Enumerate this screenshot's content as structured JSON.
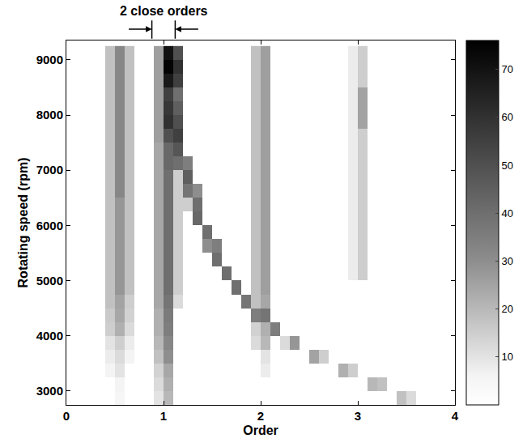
{
  "chart_data": {
    "type": "heatmap",
    "xlabel": "Order",
    "ylabel": "Rotating speed (rpm)",
    "xlim": [
      0,
      4
    ],
    "ylim": [
      2750,
      9350
    ],
    "xticks": [
      0,
      1,
      2,
      3,
      4
    ],
    "yticks": [
      3000,
      4000,
      5000,
      6000,
      7000,
      8000,
      9000
    ],
    "colorbar_range": [
      0,
      76
    ],
    "colorbar_ticks": [
      10,
      20,
      30,
      40,
      50,
      60,
      70
    ],
    "annotations": [
      {
        "text": "2 close orders",
        "x": 1,
        "markers": [
          0.88,
          1.12
        ]
      }
    ],
    "x": [
      0.05,
      0.15,
      0.25,
      0.35,
      0.45,
      0.55,
      0.65,
      0.75,
      0.85,
      0.95,
      1.05,
      1.15,
      1.25,
      1.35,
      1.45,
      1.55,
      1.65,
      1.75,
      1.85,
      1.95,
      2.05,
      2.15,
      2.25,
      2.35,
      2.45,
      2.55,
      2.65,
      2.75,
      2.85,
      2.95,
      3.05,
      3.15,
      3.25,
      3.35,
      3.45,
      3.55,
      3.65,
      3.75,
      3.85,
      3.95
    ],
    "y": [
      2875,
      3125,
      3375,
      3625,
      3875,
      4125,
      4375,
      4625,
      4875,
      5125,
      5375,
      5625,
      5875,
      6125,
      6375,
      6625,
      6875,
      7125,
      7375,
      7625,
      7875,
      8125,
      8375,
      8625,
      8875,
      9125
    ],
    "z": [
      [
        0,
        0,
        0,
        0,
        0,
        5,
        0,
        0,
        0,
        10,
        20,
        0,
        0,
        0,
        0,
        0,
        0,
        0,
        0,
        0,
        0,
        0,
        0,
        0,
        0,
        0,
        0,
        0,
        0,
        0,
        0,
        0,
        0,
        0,
        18,
        12,
        0,
        0,
        0,
        0
      ],
      [
        0,
        0,
        0,
        0,
        0,
        6,
        0,
        0,
        0,
        12,
        22,
        0,
        0,
        0,
        0,
        0,
        0,
        0,
        0,
        0,
        0,
        0,
        0,
        0,
        0,
        0,
        0,
        0,
        0,
        0,
        0,
        20,
        18,
        0,
        0,
        0,
        0,
        0,
        0,
        0
      ],
      [
        0,
        0,
        0,
        0,
        6,
        10,
        0,
        0,
        0,
        14,
        24,
        0,
        0,
        0,
        0,
        0,
        0,
        0,
        0,
        0,
        8,
        0,
        0,
        0,
        0,
        0,
        0,
        0,
        22,
        15,
        0,
        0,
        0,
        0,
        0,
        0,
        0,
        0,
        0,
        0
      ],
      [
        0,
        0,
        0,
        0,
        8,
        12,
        6,
        0,
        0,
        18,
        30,
        0,
        0,
        0,
        0,
        0,
        0,
        0,
        0,
        0,
        10,
        0,
        0,
        0,
        0,
        25,
        15,
        0,
        0,
        0,
        0,
        0,
        0,
        0,
        0,
        0,
        0,
        0,
        0,
        0
      ],
      [
        0,
        0,
        0,
        0,
        10,
        15,
        8,
        0,
        0,
        20,
        32,
        0,
        0,
        0,
        0,
        0,
        0,
        0,
        0,
        12,
        20,
        0,
        12,
        28,
        0,
        0,
        0,
        0,
        0,
        0,
        0,
        0,
        0,
        0,
        0,
        0,
        0,
        0,
        0,
        0
      ],
      [
        0,
        0,
        0,
        0,
        15,
        22,
        12,
        0,
        0,
        22,
        35,
        0,
        0,
        0,
        0,
        0,
        0,
        0,
        0,
        14,
        22,
        35,
        0,
        0,
        0,
        0,
        0,
        0,
        0,
        0,
        0,
        0,
        0,
        0,
        0,
        0,
        0,
        0,
        0,
        0
      ],
      [
        0,
        0,
        0,
        0,
        16,
        24,
        14,
        0,
        0,
        22,
        36,
        0,
        0,
        0,
        0,
        0,
        0,
        0,
        0,
        35,
        38,
        0,
        0,
        0,
        0,
        0,
        0,
        0,
        0,
        0,
        0,
        0,
        0,
        0,
        0,
        0,
        0,
        0,
        0,
        0
      ],
      [
        0,
        0,
        0,
        0,
        18,
        25,
        15,
        0,
        0,
        24,
        38,
        12,
        0,
        0,
        0,
        0,
        0,
        0,
        38,
        18,
        24,
        0,
        0,
        0,
        0,
        0,
        0,
        0,
        0,
        0,
        0,
        0,
        0,
        0,
        0,
        0,
        0,
        0,
        0,
        0
      ],
      [
        0,
        0,
        0,
        0,
        18,
        28,
        18,
        0,
        0,
        24,
        40,
        15,
        0,
        0,
        0,
        0,
        0,
        40,
        0,
        18,
        26,
        0,
        0,
        0,
        0,
        0,
        0,
        0,
        0,
        0,
        0,
        0,
        0,
        0,
        0,
        0,
        0,
        0,
        0,
        0
      ],
      [
        0,
        0,
        0,
        0,
        18,
        28,
        18,
        0,
        0,
        24,
        40,
        15,
        0,
        0,
        0,
        0,
        40,
        0,
        0,
        18,
        26,
        0,
        0,
        0,
        0,
        0,
        0,
        0,
        0,
        8,
        15,
        0,
        0,
        0,
        0,
        0,
        0,
        0,
        0,
        0
      ],
      [
        0,
        0,
        0,
        0,
        18,
        28,
        18,
        0,
        0,
        24,
        40,
        15,
        0,
        0,
        0,
        40,
        0,
        0,
        0,
        18,
        26,
        0,
        0,
        0,
        0,
        0,
        0,
        0,
        0,
        8,
        15,
        0,
        0,
        0,
        0,
        0,
        0,
        0,
        0,
        0
      ],
      [
        0,
        0,
        0,
        0,
        18,
        28,
        18,
        0,
        0,
        24,
        40,
        15,
        0,
        0,
        30,
        35,
        0,
        0,
        0,
        18,
        26,
        0,
        0,
        0,
        0,
        0,
        0,
        0,
        0,
        8,
        15,
        0,
        0,
        0,
        0,
        0,
        0,
        0,
        0,
        0
      ],
      [
        0,
        0,
        0,
        0,
        18,
        28,
        18,
        0,
        0,
        24,
        40,
        15,
        0,
        0,
        40,
        0,
        0,
        0,
        0,
        18,
        26,
        0,
        0,
        0,
        0,
        0,
        0,
        0,
        0,
        8,
        15,
        0,
        0,
        0,
        0,
        0,
        0,
        0,
        0,
        0
      ],
      [
        0,
        0,
        0,
        0,
        18,
        28,
        18,
        0,
        0,
        24,
        40,
        15,
        0,
        42,
        0,
        0,
        0,
        0,
        0,
        18,
        26,
        0,
        0,
        0,
        0,
        0,
        0,
        0,
        0,
        8,
        15,
        0,
        0,
        0,
        0,
        0,
        0,
        0,
        0,
        0
      ],
      [
        0,
        0,
        0,
        0,
        18,
        28,
        18,
        0,
        0,
        24,
        40,
        15,
        15,
        40,
        0,
        0,
        0,
        0,
        0,
        18,
        26,
        0,
        0,
        0,
        0,
        0,
        0,
        0,
        0,
        8,
        15,
        0,
        0,
        0,
        0,
        0,
        0,
        0,
        0,
        0
      ],
      [
        0,
        0,
        0,
        0,
        18,
        32,
        18,
        0,
        0,
        24,
        40,
        15,
        38,
        30,
        0,
        0,
        0,
        0,
        0,
        18,
        26,
        0,
        0,
        0,
        0,
        0,
        0,
        0,
        0,
        8,
        15,
        0,
        0,
        0,
        0,
        0,
        0,
        0,
        0,
        0
      ],
      [
        0,
        0,
        0,
        0,
        18,
        32,
        18,
        0,
        0,
        24,
        40,
        15,
        45,
        0,
        0,
        0,
        0,
        0,
        0,
        18,
        26,
        0,
        0,
        0,
        0,
        0,
        0,
        0,
        0,
        8,
        15,
        0,
        0,
        0,
        0,
        0,
        0,
        0,
        0,
        0
      ],
      [
        0,
        0,
        0,
        0,
        18,
        32,
        18,
        0,
        0,
        24,
        42,
        40,
        35,
        0,
        0,
        0,
        0,
        0,
        0,
        18,
        26,
        0,
        0,
        0,
        0,
        0,
        0,
        0,
        0,
        8,
        15,
        0,
        0,
        0,
        0,
        0,
        0,
        0,
        0,
        0
      ],
      [
        0,
        0,
        0,
        0,
        18,
        32,
        18,
        0,
        0,
        24,
        42,
        48,
        0,
        0,
        0,
        0,
        0,
        0,
        0,
        18,
        26,
        0,
        0,
        0,
        0,
        0,
        0,
        0,
        0,
        8,
        15,
        0,
        0,
        0,
        0,
        0,
        0,
        0,
        0,
        0
      ],
      [
        0,
        0,
        0,
        0,
        18,
        32,
        18,
        0,
        0,
        26,
        50,
        55,
        0,
        0,
        0,
        0,
        0,
        0,
        0,
        18,
        26,
        0,
        0,
        0,
        0,
        0,
        0,
        0,
        0,
        8,
        15,
        0,
        0,
        0,
        0,
        0,
        0,
        0,
        0,
        0
      ],
      [
        0,
        0,
        0,
        0,
        18,
        32,
        18,
        0,
        0,
        26,
        60,
        50,
        0,
        0,
        0,
        0,
        0,
        0,
        0,
        18,
        26,
        0,
        0,
        0,
        0,
        0,
        0,
        0,
        0,
        8,
        25,
        0,
        0,
        0,
        0,
        0,
        0,
        0,
        0,
        0
      ],
      [
        0,
        0,
        0,
        0,
        18,
        32,
        18,
        0,
        0,
        26,
        58,
        45,
        0,
        0,
        0,
        0,
        0,
        0,
        0,
        18,
        26,
        0,
        0,
        0,
        0,
        0,
        0,
        0,
        0,
        8,
        25,
        0,
        0,
        0,
        0,
        0,
        0,
        0,
        0,
        0
      ],
      [
        0,
        0,
        0,
        0,
        18,
        32,
        18,
        0,
        0,
        26,
        55,
        40,
        0,
        0,
        0,
        0,
        0,
        0,
        0,
        18,
        26,
        0,
        0,
        0,
        0,
        0,
        0,
        0,
        0,
        8,
        25,
        0,
        0,
        0,
        0,
        0,
        0,
        0,
        0,
        0
      ],
      [
        0,
        0,
        0,
        0,
        18,
        32,
        18,
        0,
        0,
        26,
        68,
        55,
        0,
        0,
        0,
        0,
        0,
        0,
        0,
        18,
        26,
        0,
        0,
        0,
        0,
        0,
        0,
        0,
        0,
        8,
        15,
        0,
        0,
        0,
        0,
        0,
        0,
        0,
        0,
        0
      ],
      [
        0,
        0,
        0,
        0,
        18,
        32,
        18,
        0,
        0,
        26,
        75,
        60,
        0,
        0,
        0,
        0,
        0,
        0,
        0,
        18,
        26,
        0,
        0,
        0,
        0,
        0,
        0,
        0,
        0,
        8,
        15,
        0,
        0,
        0,
        0,
        0,
        0,
        0,
        0,
        0
      ],
      [
        0,
        0,
        0,
        0,
        18,
        32,
        18,
        0,
        0,
        26,
        70,
        50,
        0,
        0,
        0,
        0,
        0,
        0,
        0,
        18,
        26,
        0,
        0,
        0,
        0,
        0,
        0,
        0,
        0,
        8,
        15,
        0,
        0,
        0,
        0,
        0,
        0,
        0,
        0,
        0
      ]
    ]
  }
}
